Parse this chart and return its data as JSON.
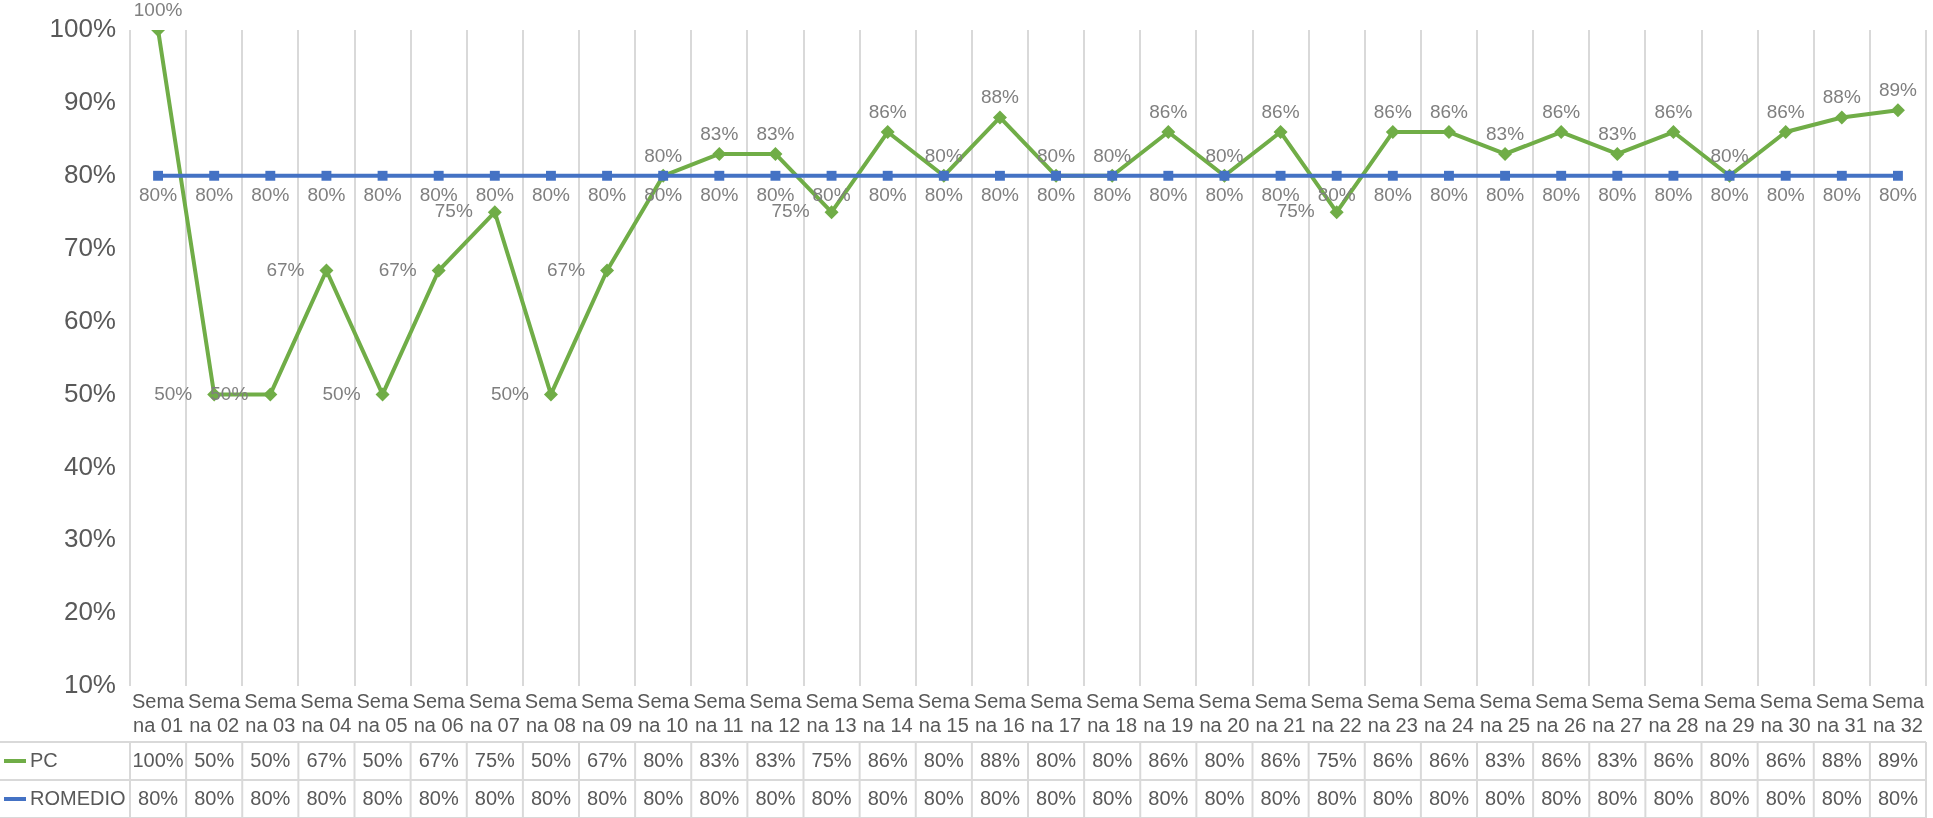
{
  "chart_data": {
    "type": "line",
    "categories": [
      "Semana 01",
      "Semana 02",
      "Semana 03",
      "Semana 04",
      "Semana 05",
      "Semana 06",
      "Semana 07",
      "Semana 08",
      "Semana 09",
      "Semana 10",
      "Semana 11",
      "Semana 12",
      "Semana 13",
      "Semana 14",
      "Semana 15",
      "Semana 16",
      "Semana 17",
      "Semana 18",
      "Semana 19",
      "Semana 20",
      "Semana 21",
      "Semana 22",
      "Semana 23",
      "Semana 24",
      "Semana 25",
      "Semana 26",
      "Semana 27",
      "Semana 28",
      "Semana 29",
      "Semana 30",
      "Semana 31",
      "Semana 32"
    ],
    "series": [
      {
        "name": "PC",
        "color": "#70ad47",
        "marker": "diamond",
        "values": [
          100,
          50,
          50,
          67,
          50,
          67,
          75,
          50,
          67,
          80,
          83,
          83,
          75,
          86,
          80,
          88,
          80,
          80,
          86,
          80,
          86,
          75,
          86,
          86,
          83,
          86,
          83,
          86,
          80,
          86,
          88,
          89
        ],
        "value_labels": [
          "100%",
          "50%",
          "50%",
          "67%",
          "50%",
          "67%",
          "75%",
          "50%",
          "67%",
          "80%",
          "83%",
          "83%",
          "75%",
          "86%",
          "80%",
          "88%",
          "80%",
          "80%",
          "86%",
          "80%",
          "86%",
          "75%",
          "86%",
          "86%",
          "83%",
          "86%",
          "83%",
          "86%",
          "80%",
          "86%",
          "88%",
          "89%"
        ]
      },
      {
        "name": "ROMEDIO",
        "color": "#4472c4",
        "marker": "square",
        "values": [
          80,
          80,
          80,
          80,
          80,
          80,
          80,
          80,
          80,
          80,
          80,
          80,
          80,
          80,
          80,
          80,
          80,
          80,
          80,
          80,
          80,
          80,
          80,
          80,
          80,
          80,
          80,
          80,
          80,
          80,
          80,
          80
        ],
        "value_labels": [
          "80%",
          "80%",
          "80%",
          "80%",
          "80%",
          "80%",
          "80%",
          "80%",
          "80%",
          "80%",
          "80%",
          "80%",
          "80%",
          "80%",
          "80%",
          "80%",
          "80%",
          "80%",
          "80%",
          "80%",
          "80%",
          "80%",
          "80%",
          "80%",
          "80%",
          "80%",
          "80%",
          "80%",
          "80%",
          "80%",
          "80%",
          "80%"
        ]
      }
    ],
    "ylim": [
      10,
      100
    ],
    "yticks": [
      {
        "value": 10,
        "label": "10%"
      },
      {
        "value": 20,
        "label": "20%"
      },
      {
        "value": 30,
        "label": "30%"
      },
      {
        "value": 40,
        "label": "40%"
      },
      {
        "value": 50,
        "label": "50%"
      },
      {
        "value": 60,
        "label": "60%"
      },
      {
        "value": 70,
        "label": "70%"
      },
      {
        "value": 80,
        "label": "80%"
      },
      {
        "value": 90,
        "label": "90%"
      },
      {
        "value": 100,
        "label": "100%"
      }
    ],
    "grid": "x",
    "legend": "bottom left"
  }
}
